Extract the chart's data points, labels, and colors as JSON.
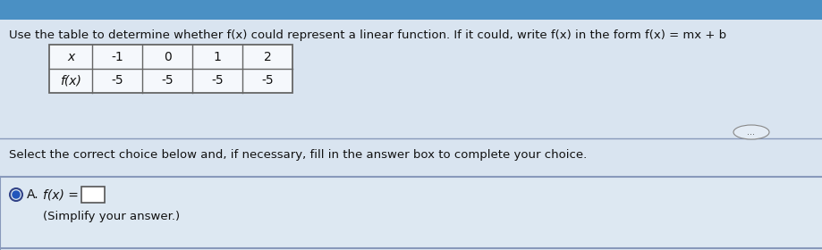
{
  "title_text": "Use the table to determine whether f(x) could represent a linear function. If it could, write f(x) in the form f(x) = mx + b",
  "table_x_label": "x",
  "table_fx_label": "f(x)",
  "table_x_values": [
    "-1",
    "0",
    "1",
    "2"
  ],
  "table_fx_values": [
    "-5",
    "-5",
    "-5",
    "-5"
  ],
  "separator_text": "Select the correct choice below and, if necessary, fill in the answer box to complete your choice.",
  "choice_label": "A.",
  "choice_fx_text": "f(x) = ",
  "choice_subtext": "(Simplify your answer.)",
  "bg_color_top": "#4a90c4",
  "bg_color_main": "#d9e4f0",
  "bg_color_choice_box": "#dde8f2",
  "table_bg": "#f5f8fc",
  "table_border": "#666666",
  "text_color": "#111111",
  "sep_line_color": "#8899bb",
  "title_fontsize": 9.5,
  "table_fontsize": 10,
  "body_fontsize": 9.5,
  "choice_fontsize": 10
}
